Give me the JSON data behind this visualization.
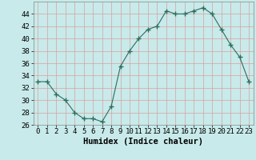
{
  "x": [
    0,
    1,
    2,
    3,
    4,
    5,
    6,
    7,
    8,
    9,
    10,
    11,
    12,
    13,
    14,
    15,
    16,
    17,
    18,
    19,
    20,
    21,
    22,
    23
  ],
  "y": [
    33,
    33,
    31,
    30,
    28,
    27,
    27,
    26.5,
    29,
    35.5,
    38,
    40,
    41.5,
    42,
    44.5,
    44,
    44,
    44.5,
    45,
    44,
    41.5,
    39,
    37,
    33
  ],
  "line_color": "#2d6e5e",
  "marker_color": "#2d6e5e",
  "bg_color": "#c8eaea",
  "grid_color": "#b0d8d8",
  "xlabel": "Humidex (Indice chaleur)",
  "ylim": [
    26,
    46
  ],
  "yticks": [
    26,
    28,
    30,
    32,
    34,
    36,
    38,
    40,
    42,
    44
  ],
  "xticks": [
    0,
    1,
    2,
    3,
    4,
    5,
    6,
    7,
    8,
    9,
    10,
    11,
    12,
    13,
    14,
    15,
    16,
    17,
    18,
    19,
    20,
    21,
    22,
    23
  ],
  "xlabel_fontsize": 7.5,
  "tick_fontsize": 6.5
}
